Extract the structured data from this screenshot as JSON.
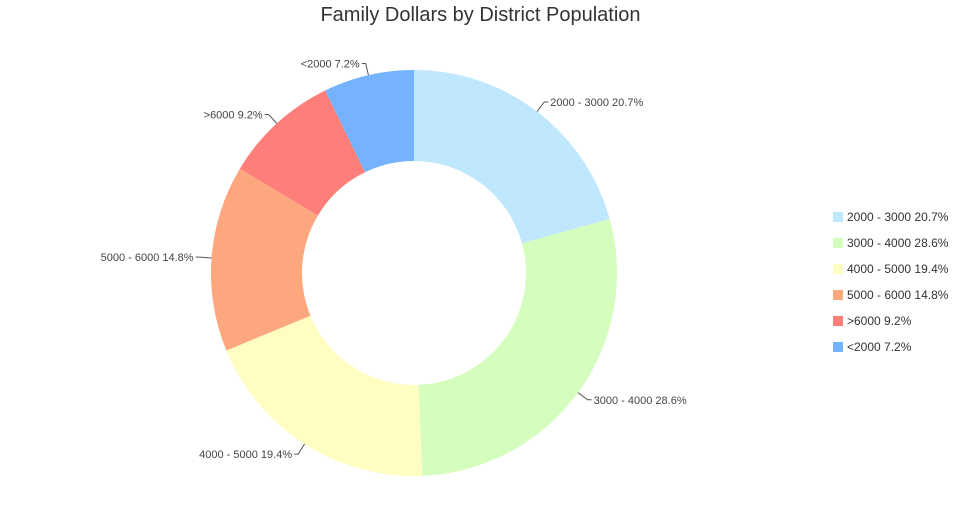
{
  "chart_data": {
    "type": "pie",
    "variant": "donut",
    "title": "Family Dollars by District Population",
    "legend_position": "right",
    "slices": [
      {
        "label": "2000 - 3000",
        "percent_text": "20.7%",
        "value": 20.7,
        "color": "#bfe7fe"
      },
      {
        "label": "3000 - 4000",
        "percent_text": "28.6%",
        "value": 28.6,
        "color": "#d5fdbd"
      },
      {
        "label": "4000 - 5000",
        "percent_text": "19.4%",
        "value": 19.4,
        "color": "#fffdc2"
      },
      {
        "label": "5000 - 6000",
        "percent_text": "14.8%",
        "value": 14.8,
        "color": "#fda77f"
      },
      {
        "label": ">6000",
        "percent_text": "9.2%",
        "value": 9.2,
        "color": "#fe7e7a"
      },
      {
        "label": "<2000",
        "percent_text": "7.2%",
        "value": 7.2,
        "color": "#75b3fe"
      }
    ]
  }
}
